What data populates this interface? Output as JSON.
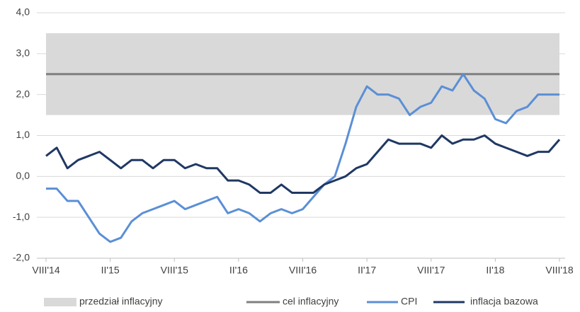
{
  "chart_data": {
    "type": "line",
    "categories": [
      "VIII'14",
      null,
      null,
      null,
      null,
      null,
      "II'15",
      null,
      null,
      null,
      null,
      null,
      "VIII'15",
      null,
      null,
      null,
      null,
      null,
      "II'16",
      null,
      null,
      null,
      null,
      null,
      "VIII'16",
      null,
      null,
      null,
      null,
      null,
      "II'17",
      null,
      null,
      null,
      null,
      null,
      "VIII'17",
      null,
      null,
      null,
      null,
      null,
      "II'18",
      null,
      null,
      null,
      null,
      null,
      "VIII'18"
    ],
    "band": {
      "name": "przedział inflacyjny",
      "lower": 1.5,
      "upper": 3.5,
      "color": "#d9d9d9"
    },
    "target": {
      "name": "cel inflacyjny",
      "value": 2.5,
      "color": "#7f7f7f"
    },
    "series": [
      {
        "name": "CPI",
        "color": "#5b8fd6",
        "values": [
          -0.3,
          -0.3,
          -0.6,
          -0.6,
          -1.0,
          -1.4,
          -1.6,
          -1.5,
          -1.1,
          -0.9,
          -0.8,
          -0.7,
          -0.6,
          -0.8,
          -0.7,
          -0.6,
          -0.5,
          -0.9,
          -0.8,
          -0.9,
          -1.1,
          -0.9,
          -0.8,
          -0.9,
          -0.8,
          -0.5,
          -0.2,
          0.0,
          0.8,
          1.7,
          2.2,
          2.0,
          2.0,
          1.9,
          1.5,
          1.7,
          1.8,
          2.2,
          2.1,
          2.5,
          2.1,
          1.9,
          1.4,
          1.3,
          1.6,
          1.7,
          2.0,
          2.0,
          2.0
        ]
      },
      {
        "name": "inflacja bazowa",
        "color": "#1f3864",
        "values": [
          0.5,
          0.7,
          0.2,
          0.4,
          0.5,
          0.6,
          0.4,
          0.2,
          0.4,
          0.4,
          0.2,
          0.4,
          0.4,
          0.2,
          0.3,
          0.2,
          0.2,
          -0.1,
          -0.1,
          -0.2,
          -0.4,
          -0.4,
          -0.2,
          -0.4,
          -0.4,
          -0.4,
          -0.2,
          -0.1,
          0.0,
          0.2,
          0.3,
          0.6,
          0.9,
          0.8,
          0.8,
          0.8,
          0.7,
          1.0,
          0.8,
          0.9,
          0.9,
          1.0,
          0.8,
          0.7,
          0.6,
          0.5,
          0.6,
          0.6,
          0.9
        ]
      }
    ],
    "ylim": [
      -2,
      4
    ],
    "yticks": [
      {
        "value": -2,
        "label": "-2,0"
      },
      {
        "value": -1,
        "label": "-1,0"
      },
      {
        "value": 0,
        "label": "0,0"
      },
      {
        "value": 1,
        "label": "1,0"
      },
      {
        "value": 2,
        "label": "2,0"
      },
      {
        "value": 3,
        "label": "3,0"
      },
      {
        "value": 4,
        "label": "4,0"
      }
    ],
    "grid": true,
    "legend": "bottom"
  }
}
